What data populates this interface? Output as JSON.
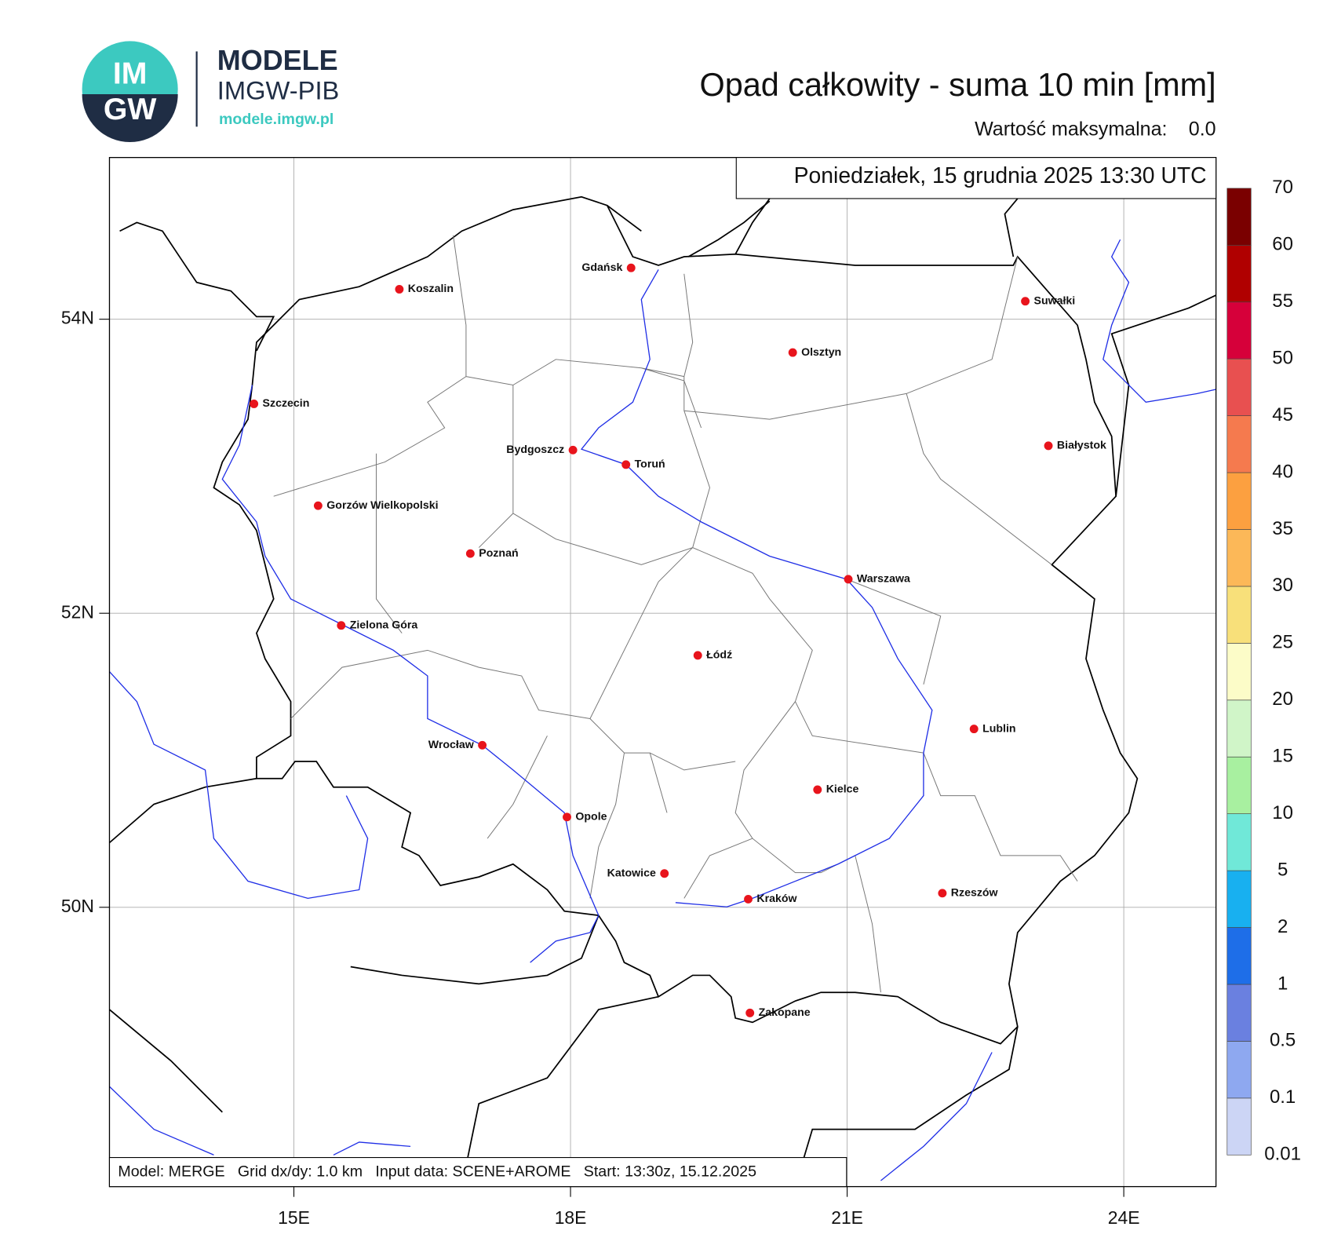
{
  "header": {
    "logo_top": "IM",
    "logo_bottom": "GW",
    "brand": "MODELE",
    "brand_sub": "IMGW-PIB",
    "url": "modele.imgw.pl"
  },
  "title": "Opad całkowity - suma 10 min [mm]",
  "max_label": "Wartość maksymalna:",
  "max_value": "0.0",
  "date": "Poniedziałek, 15 grudnia 2025 13:30 UTC",
  "footer": "Model: MERGE   Grid dx/dy: 1.0 km   Input data: SCENE+AROME   Start: 13:30z, 15.12.2025",
  "map": {
    "xlim": [
      13,
      25
    ],
    "ylim": [
      48.1,
      55.1
    ],
    "xticks": [
      {
        "value": 15,
        "label": "15E"
      },
      {
        "value": 18,
        "label": "18E"
      },
      {
        "value": 21,
        "label": "21E"
      },
      {
        "value": 24,
        "label": "24E"
      }
    ],
    "yticks": [
      {
        "value": 50,
        "label": "50N"
      },
      {
        "value": 52,
        "label": "52N"
      },
      {
        "value": 54,
        "label": "54N"
      }
    ],
    "grid": true,
    "cities": [
      "Gdańsk",
      "Koszalin",
      "Suwałki",
      "Olsztyn",
      "Szczecin",
      "Białystok",
      "Bydgoszcz",
      "Toruń",
      "Gorzów Wielkopolski",
      "Poznań",
      "Warszawa",
      "Zielona Góra",
      "Łódź",
      "Lublin",
      "Wrocław",
      "Kielce",
      "Opole",
      "Katowice",
      "Kraków",
      "Rzeszów",
      "Zakopane"
    ],
    "city_color": "#e8141c"
  },
  "colorbar": {
    "levels": [
      0.01,
      0.1,
      0.5,
      1,
      2,
      5,
      10,
      15,
      20,
      25,
      30,
      35,
      40,
      45,
      50,
      55,
      60,
      70
    ],
    "colors": [
      "#ccd5f5",
      "#8ea8f0",
      "#6a80e0",
      "#1e6ee8",
      "#18b0f0",
      "#70e8d8",
      "#a8f0a0",
      "#d0f5c8",
      "#fcfcc8",
      "#f8e07a",
      "#fcb858",
      "#fca040",
      "#f57a4e",
      "#e85050",
      "#d6003a",
      "#b00000",
      "#7a0000"
    ]
  }
}
